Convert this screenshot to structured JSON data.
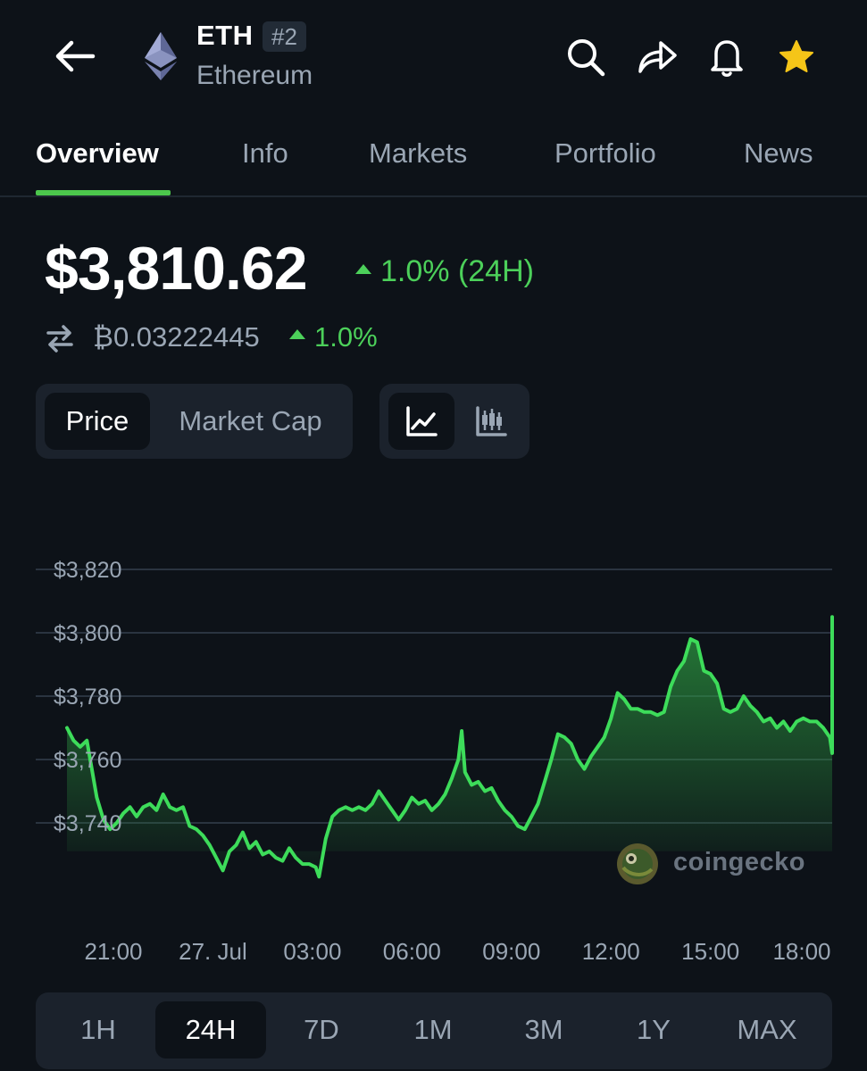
{
  "header": {
    "symbol": "ETH",
    "rank": "#2",
    "name": "Ethereum",
    "icons": [
      "back-arrow-icon",
      "ethereum-logo",
      "search-icon",
      "share-icon",
      "bell-icon",
      "star-icon"
    ],
    "star_color": "#f5c518"
  },
  "tabs": [
    {
      "label": "Overview",
      "active": true
    },
    {
      "label": "Info",
      "active": false
    },
    {
      "label": "Markets",
      "active": false
    },
    {
      "label": "Portfolio",
      "active": false
    },
    {
      "label": "News",
      "active": false
    }
  ],
  "price": {
    "usd": "$3,810.62",
    "change": "1.0% (24H)",
    "btc": "₿0.03222445",
    "btc_change": "1.0%"
  },
  "toggles": {
    "metric": [
      {
        "label": "Price",
        "active": true
      },
      {
        "label": "Market Cap",
        "active": false
      }
    ],
    "chart_type": [
      {
        "icon": "line-chart-icon",
        "active": true
      },
      {
        "icon": "candlestick-chart-icon",
        "active": false
      }
    ]
  },
  "colors": {
    "background": "#0d1218",
    "accent_green": "#4cd05a",
    "muted_text": "#9aa6b4",
    "panel": "#1b222c"
  },
  "chart_data": {
    "type": "area",
    "y_ticks": [
      "$3,820",
      "$3,800",
      "$3,780",
      "$3,760",
      "$3,740"
    ],
    "x_ticks": [
      "21:00",
      "27. Jul",
      "03:00",
      "06:00",
      "09:00",
      "12:00",
      "15:00",
      "18:00"
    ],
    "ylim": [
      3735,
      3820
    ],
    "xlim": [
      19.6,
      43.7
    ],
    "x_unit": "hours",
    "series": [
      {
        "values": [
          [
            19.6,
            3770
          ],
          [
            19.8,
            3766
          ],
          [
            20.0,
            3764
          ],
          [
            20.2,
            3766
          ],
          [
            20.3,
            3760
          ],
          [
            20.5,
            3748
          ],
          [
            20.7,
            3741
          ],
          [
            20.9,
            3738
          ],
          [
            21.1,
            3740
          ],
          [
            21.3,
            3743
          ],
          [
            21.5,
            3745
          ],
          [
            21.7,
            3742
          ],
          [
            21.9,
            3745
          ],
          [
            22.1,
            3746
          ],
          [
            22.3,
            3744
          ],
          [
            22.5,
            3749
          ],
          [
            22.7,
            3745
          ],
          [
            22.9,
            3744
          ],
          [
            23.1,
            3745
          ],
          [
            23.3,
            3739
          ],
          [
            23.5,
            3738
          ],
          [
            23.7,
            3736
          ],
          [
            23.9,
            3733
          ],
          [
            24.1,
            3729
          ],
          [
            24.3,
            3725
          ],
          [
            24.5,
            3731
          ],
          [
            24.7,
            3733
          ],
          [
            24.9,
            3737
          ],
          [
            25.1,
            3732
          ],
          [
            25.3,
            3734
          ],
          [
            25.5,
            3730
          ],
          [
            25.7,
            3731
          ],
          [
            25.9,
            3729
          ],
          [
            26.1,
            3728
          ],
          [
            26.3,
            3732
          ],
          [
            26.5,
            3729
          ],
          [
            26.7,
            3727
          ],
          [
            26.9,
            3727
          ],
          [
            27.1,
            3726
          ],
          [
            27.2,
            3723
          ],
          [
            27.4,
            3735
          ],
          [
            27.6,
            3742
          ],
          [
            27.8,
            3744
          ],
          [
            28.0,
            3745
          ],
          [
            28.2,
            3744
          ],
          [
            28.4,
            3745
          ],
          [
            28.6,
            3744
          ],
          [
            28.8,
            3746
          ],
          [
            29.0,
            3750
          ],
          [
            29.2,
            3747
          ],
          [
            29.4,
            3744
          ],
          [
            29.6,
            3741
          ],
          [
            29.8,
            3744
          ],
          [
            30.0,
            3748
          ],
          [
            30.2,
            3746
          ],
          [
            30.4,
            3747
          ],
          [
            30.6,
            3744
          ],
          [
            30.8,
            3746
          ],
          [
            31.0,
            3749
          ],
          [
            31.2,
            3754
          ],
          [
            31.4,
            3760
          ],
          [
            31.5,
            3769
          ],
          [
            31.6,
            3756
          ],
          [
            31.8,
            3752
          ],
          [
            32.0,
            3753
          ],
          [
            32.2,
            3750
          ],
          [
            32.4,
            3751
          ],
          [
            32.6,
            3747
          ],
          [
            32.8,
            3744
          ],
          [
            33.0,
            3742
          ],
          [
            33.2,
            3739
          ],
          [
            33.4,
            3738
          ],
          [
            33.6,
            3742
          ],
          [
            33.8,
            3746
          ],
          [
            34.0,
            3753
          ],
          [
            34.2,
            3760
          ],
          [
            34.4,
            3768
          ],
          [
            34.6,
            3767
          ],
          [
            34.8,
            3765
          ],
          [
            35.0,
            3760
          ],
          [
            35.2,
            3757
          ],
          [
            35.4,
            3761
          ],
          [
            35.6,
            3764
          ],
          [
            35.8,
            3767
          ],
          [
            36.0,
            3773
          ],
          [
            36.2,
            3781
          ],
          [
            36.4,
            3779
          ],
          [
            36.6,
            3776
          ],
          [
            36.8,
            3776
          ],
          [
            37.0,
            3775
          ],
          [
            37.2,
            3775
          ],
          [
            37.4,
            3774
          ],
          [
            37.6,
            3775
          ],
          [
            37.8,
            3783
          ],
          [
            38.0,
            3788
          ],
          [
            38.2,
            3791
          ],
          [
            38.4,
            3798
          ],
          [
            38.6,
            3797
          ],
          [
            38.8,
            3788
          ],
          [
            39.0,
            3787
          ],
          [
            39.2,
            3784
          ],
          [
            39.4,
            3776
          ],
          [
            39.6,
            3775
          ],
          [
            39.8,
            3776
          ],
          [
            40.0,
            3780
          ],
          [
            40.2,
            3777
          ],
          [
            40.4,
            3775
          ],
          [
            40.6,
            3772
          ],
          [
            40.8,
            3773
          ],
          [
            41.0,
            3770
          ],
          [
            41.2,
            3772
          ],
          [
            41.4,
            3769
          ],
          [
            41.6,
            3772
          ],
          [
            41.8,
            3773
          ],
          [
            42.0,
            3772
          ],
          [
            42.2,
            3772
          ],
          [
            42.4,
            3770
          ],
          [
            42.6,
            3767
          ],
          [
            42.8,
            3762
          ],
          [
            43.0,
            3770
          ],
          [
            43.2,
            3787
          ],
          [
            43.4,
            3790
          ],
          [
            43.6,
            3795
          ],
          [
            43.7,
            3805
          ]
        ]
      }
    ],
    "grid": true,
    "watermark": "coingecko"
  },
  "ranges": [
    {
      "label": "1H",
      "active": false
    },
    {
      "label": "24H",
      "active": true
    },
    {
      "label": "7D",
      "active": false
    },
    {
      "label": "1M",
      "active": false
    },
    {
      "label": "3M",
      "active": false
    },
    {
      "label": "1Y",
      "active": false
    },
    {
      "label": "MAX",
      "active": false
    }
  ]
}
